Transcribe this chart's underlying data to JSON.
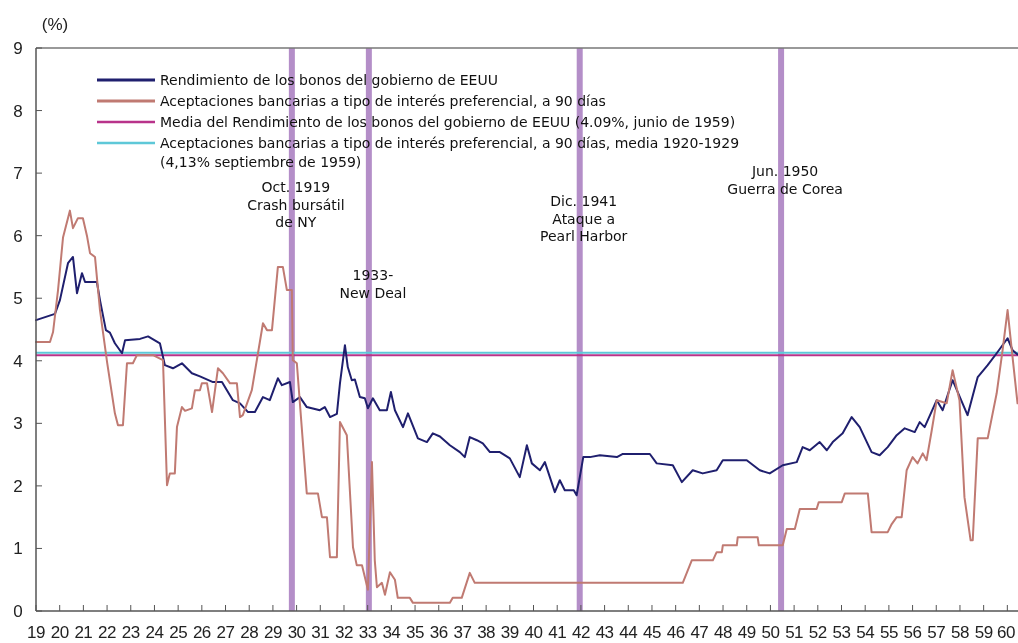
{
  "chart_data": {
    "type": "line",
    "ylabel": "(%)",
    "xlim": [
      1919,
      1960.45
    ],
    "ylim": [
      0,
      9
    ],
    "yticks": [
      0,
      1,
      2,
      3,
      4,
      5,
      6,
      7,
      8,
      9
    ],
    "xticks": [
      {
        "value": 1919,
        "label": "19"
      },
      {
        "value": 1920,
        "label": "20"
      },
      {
        "value": 1921,
        "label": "21"
      },
      {
        "value": 1922,
        "label": "22"
      },
      {
        "value": 1923,
        "label": "23"
      },
      {
        "value": 1924,
        "label": "24"
      },
      {
        "value": 1925,
        "label": "25"
      },
      {
        "value": 1926,
        "label": "26"
      },
      {
        "value": 1927,
        "label": "27"
      },
      {
        "value": 1928,
        "label": "28"
      },
      {
        "value": 1929,
        "label": "29"
      },
      {
        "value": 1930,
        "label": "30"
      },
      {
        "value": 1931,
        "label": "31"
      },
      {
        "value": 1932,
        "label": "32"
      },
      {
        "value": 1933,
        "label": "33"
      },
      {
        "value": 1934,
        "label": "34"
      },
      {
        "value": 1935,
        "label": "35"
      },
      {
        "value": 1936,
        "label": "36"
      },
      {
        "value": 1937,
        "label": "37"
      },
      {
        "value": 1938,
        "label": "38"
      },
      {
        "value": 1939,
        "label": "39"
      },
      {
        "value": 1940,
        "label": "40"
      },
      {
        "value": 1941,
        "label": "41"
      },
      {
        "value": 1942,
        "label": "42"
      },
      {
        "value": 1943,
        "label": "43"
      },
      {
        "value": 1944,
        "label": "44"
      },
      {
        "value": 1945,
        "label": "45"
      },
      {
        "value": 1946,
        "label": "46"
      },
      {
        "value": 1947,
        "label": "47"
      },
      {
        "value": 1948,
        "label": "48"
      },
      {
        "value": 1949,
        "label": "49"
      },
      {
        "value": 1950,
        "label": "50"
      },
      {
        "value": 1951,
        "label": "51"
      },
      {
        "value": 1952,
        "label": "52"
      },
      {
        "value": 1953,
        "label": "53"
      },
      {
        "value": 1954,
        "label": "54"
      },
      {
        "value": 1955,
        "label": "55"
      },
      {
        "value": 1956,
        "label": "56"
      },
      {
        "value": 1957,
        "label": "57"
      },
      {
        "value": 1958,
        "label": "58"
      },
      {
        "value": 1959,
        "label": "59"
      },
      {
        "value": 1960,
        "label": "60"
      }
    ],
    "grid": false,
    "legend": "top left",
    "marker": "none",
    "line_style": "solid",
    "series": [
      {
        "name": "Rendimiento de los bonos del gobierno de EEUU",
        "color": "#1f1f6e",
        "x": [
          1919.0,
          1919.8,
          1920.01,
          1920.35,
          1920.56,
          1920.73,
          1920.94,
          1921.07,
          1921.57,
          1921.7,
          1921.95,
          1922.12,
          1922.33,
          1922.63,
          1922.76,
          1923.39,
          1923.73,
          1924.23,
          1924.44,
          1924.78,
          1925.16,
          1925.58,
          1925.92,
          1926.47,
          1926.85,
          1927.31,
          1927.61,
          1927.95,
          1928.24,
          1928.58,
          1928.87,
          1929.21,
          1929.38,
          1929.72,
          1929.84,
          1930.14,
          1930.43,
          1930.98,
          1931.19,
          1931.41,
          1931.7,
          1931.83,
          1932.04,
          1932.16,
          1932.33,
          1932.46,
          1932.67,
          1932.88,
          1933.01,
          1933.22,
          1933.51,
          1933.81,
          1933.98,
          1934.15,
          1934.49,
          1934.7,
          1935.12,
          1935.5,
          1935.75,
          1936.05,
          1936.47,
          1936.89,
          1937.1,
          1937.31,
          1937.61,
          1937.86,
          1938.16,
          1938.58,
          1939.0,
          1939.42,
          1939.72,
          1939.93,
          1940.27,
          1940.48,
          1940.9,
          1941.11,
          1941.32,
          1941.7,
          1941.82,
          1942.1,
          1942.38,
          1942.8,
          1943.52,
          1943.77,
          1944.91,
          1945.2,
          1945.88,
          1946.26,
          1946.72,
          1947.14,
          1947.73,
          1947.99,
          1949.0,
          1949.55,
          1949.97,
          1950.52,
          1951.11,
          1951.36,
          1951.66,
          1952.08,
          1952.38,
          1952.63,
          1953.05,
          1953.43,
          1953.77,
          1954.27,
          1954.61,
          1954.95,
          1955.33,
          1955.67,
          1956.09,
          1956.3,
          1956.51,
          1957.02,
          1957.27,
          1957.69,
          1958.32,
          1958.75,
          1959.17,
          1959.55,
          1960.01,
          1960.22,
          1960.43
        ],
        "values": [
          4.65,
          4.75,
          4.97,
          5.56,
          5.66,
          5.08,
          5.4,
          5.26,
          5.26,
          4.97,
          4.49,
          4.45,
          4.28,
          4.12,
          4.33,
          4.35,
          4.39,
          4.28,
          3.93,
          3.88,
          3.96,
          3.8,
          3.75,
          3.66,
          3.66,
          3.37,
          3.32,
          3.18,
          3.18,
          3.42,
          3.37,
          3.72,
          3.61,
          3.66,
          3.34,
          3.42,
          3.26,
          3.21,
          3.26,
          3.1,
          3.15,
          3.64,
          4.25,
          3.9,
          3.69,
          3.7,
          3.42,
          3.4,
          3.24,
          3.4,
          3.21,
          3.21,
          3.5,
          3.21,
          2.94,
          3.16,
          2.76,
          2.7,
          2.84,
          2.79,
          2.65,
          2.54,
          2.46,
          2.78,
          2.73,
          2.68,
          2.54,
          2.54,
          2.44,
          2.14,
          2.65,
          2.36,
          2.25,
          2.38,
          1.9,
          2.09,
          1.93,
          1.93,
          1.85,
          2.46,
          2.46,
          2.49,
          2.46,
          2.51,
          2.51,
          2.36,
          2.33,
          2.06,
          2.25,
          2.2,
          2.25,
          2.41,
          2.41,
          2.25,
          2.2,
          2.33,
          2.38,
          2.62,
          2.57,
          2.7,
          2.57,
          2.7,
          2.84,
          3.1,
          2.94,
          2.54,
          2.49,
          2.62,
          2.81,
          2.92,
          2.86,
          3.02,
          2.94,
          3.37,
          3.21,
          3.69,
          3.13,
          3.74,
          3.93,
          4.12,
          4.36,
          4.17,
          4.1
        ]
      },
      {
        "name": "Aceptaciones bancarias a tipo de interés preferencial, a 90 días",
        "color": "#c07a72",
        "x": [
          1919.0,
          1919.59,
          1919.72,
          1919.93,
          1920.14,
          1920.43,
          1920.56,
          1920.77,
          1920.98,
          1921.15,
          1921.28,
          1921.49,
          1921.7,
          1922.0,
          1922.33,
          1922.46,
          1922.67,
          1922.84,
          1923.09,
          1923.26,
          1923.94,
          1924.36,
          1924.53,
          1924.65,
          1924.86,
          1924.95,
          1925.16,
          1925.29,
          1925.58,
          1925.71,
          1925.92,
          1926.0,
          1926.22,
          1926.43,
          1926.68,
          1926.89,
          1927.19,
          1927.48,
          1927.61,
          1927.73,
          1928.11,
          1928.58,
          1928.75,
          1928.96,
          1929.21,
          1929.42,
          1929.59,
          1929.8,
          1929.84,
          1930.01,
          1930.43,
          1930.9,
          1931.07,
          1931.28,
          1931.41,
          1931.7,
          1931.83,
          1932.12,
          1932.38,
          1932.54,
          1932.76,
          1933.01,
          1933.18,
          1933.3,
          1933.39,
          1933.6,
          1933.73,
          1933.94,
          1934.15,
          1934.27,
          1934.78,
          1934.91,
          1936.47,
          1936.59,
          1936.97,
          1937.31,
          1937.52,
          1946.3,
          1946.68,
          1947.57,
          1947.73,
          1947.95,
          1947.99,
          1948.58,
          1948.62,
          1949.46,
          1949.51,
          1950.52,
          1950.69,
          1951.03,
          1951.24,
          1951.95,
          1952.04,
          1953.01,
          1953.14,
          1954.11,
          1954.27,
          1954.95,
          1955.12,
          1955.33,
          1955.54,
          1955.75,
          1956.0,
          1956.21,
          1956.43,
          1956.59,
          1956.81,
          1957.02,
          1957.44,
          1957.69,
          1957.98,
          1958.19,
          1958.45,
          1958.54,
          1958.75,
          1959.17,
          1959.55,
          1959.8,
          1960.01,
          1960.22,
          1960.43
        ],
        "values": [
          4.3,
          4.3,
          4.46,
          5.13,
          5.97,
          6.4,
          6.12,
          6.28,
          6.28,
          6.0,
          5.72,
          5.66,
          4.81,
          3.98,
          3.16,
          2.97,
          2.97,
          3.96,
          3.96,
          4.09,
          4.09,
          4.01,
          2.01,
          2.2,
          2.2,
          2.94,
          3.26,
          3.2,
          3.24,
          3.53,
          3.53,
          3.64,
          3.64,
          3.18,
          3.88,
          3.8,
          3.64,
          3.64,
          3.1,
          3.13,
          3.53,
          4.6,
          4.49,
          4.49,
          5.5,
          5.5,
          5.13,
          5.13,
          4.01,
          3.96,
          1.88,
          1.88,
          1.5,
          1.5,
          0.86,
          0.86,
          3.02,
          2.81,
          1.02,
          0.73,
          0.73,
          0.34,
          2.38,
          0.81,
          0.38,
          0.45,
          0.26,
          0.62,
          0.5,
          0.21,
          0.21,
          0.13,
          0.13,
          0.21,
          0.21,
          0.61,
          0.45,
          0.45,
          0.81,
          0.81,
          0.94,
          0.94,
          1.05,
          1.05,
          1.18,
          1.18,
          1.05,
          1.05,
          1.31,
          1.31,
          1.63,
          1.63,
          1.74,
          1.74,
          1.88,
          1.88,
          1.26,
          1.26,
          1.39,
          1.5,
          1.5,
          2.25,
          2.46,
          2.36,
          2.52,
          2.41,
          2.89,
          3.37,
          3.32,
          3.85,
          3.37,
          1.82,
          1.13,
          1.13,
          2.76,
          2.76,
          3.48,
          4.17,
          4.81,
          4.06,
          3.32
        ]
      }
    ],
    "ref_lines": [
      {
        "axis": "y",
        "value": 4.09,
        "label": "Media del Rendimiento de los bonos del gobierno de EEUU (4.09%, junio de 1959)",
        "color": "#b8338a"
      },
      {
        "axis": "y",
        "value": 4.13,
        "label": "Aceptaciones bancarias a tipo de interés preferencial, a 90 días, media 1920-1929\n(4,13% septiembre de 1959)",
        "color": "#5ec8d8"
      },
      {
        "axis": "x",
        "value": 1929.8,
        "label": "Oct. 1919\nCrash bursátil\nde NY",
        "color": "#b48ec8"
      },
      {
        "axis": "x",
        "value": 1933.05,
        "label": "1933-\nNew Deal",
        "color": "#b48ec8"
      },
      {
        "axis": "x",
        "value": 1941.95,
        "label": "Dic. 1941\nAtaque a\nPearl Harbor",
        "color": "#b48ec8"
      },
      {
        "axis": "x",
        "value": 1950.45,
        "label": "Jun. 1950\nGuerra de Corea",
        "color": "#b48ec8"
      }
    ]
  }
}
